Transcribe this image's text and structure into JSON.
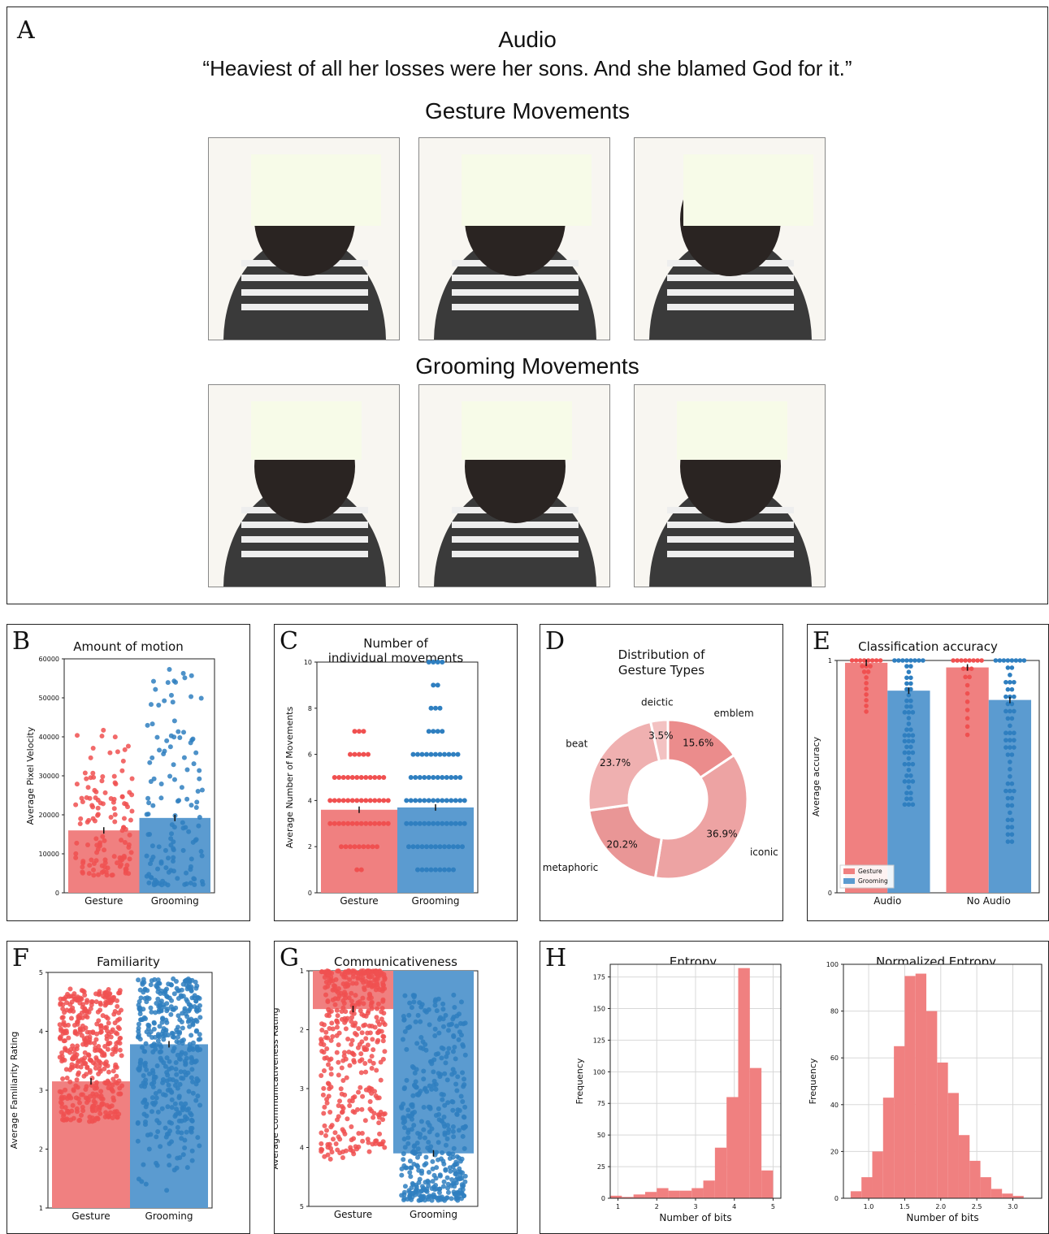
{
  "panelA": {
    "letter": "A",
    "audio_label": "Audio",
    "quote": "“Heaviest of all her losses were her sons. And she blamed God for it.”",
    "gesture_heading": "Gesture Movements",
    "grooming_heading": "Grooming Movements"
  },
  "colors": {
    "gesture": "#f08080",
    "gesture_dot": "#f05050",
    "grooming": "#5b9bd0",
    "grooming_dot": "#2f7fc0",
    "face_box": "#f7fbe8"
  },
  "chart_data": [
    {
      "id": "B",
      "letter": "B",
      "type": "bar",
      "title": "Amount of motion",
      "xlabel": "",
      "ylabel": "Average Pixel Velocity",
      "categories": [
        "Gesture",
        "Grooming"
      ],
      "values": [
        16000,
        19200
      ],
      "ylim": [
        0,
        60000
      ],
      "yticks": [
        "0",
        "10000",
        "20000",
        "30000",
        "40000",
        "50000",
        "60000"
      ],
      "points_range": [
        [
          4500,
          42000
        ],
        [
          2000,
          58000
        ]
      ],
      "points_n": 130
    },
    {
      "id": "C",
      "letter": "C",
      "type": "bar",
      "title": "Number of individual movements",
      "title_lines": [
        "Number of",
        "individual movements"
      ],
      "xlabel": "",
      "ylabel": "Average Number of Movements",
      "categories": [
        "Gesture",
        "Grooming"
      ],
      "values": [
        3.6,
        3.7
      ],
      "ylim": [
        0,
        10
      ],
      "yticks": [
        "0",
        "2",
        "4",
        "6",
        "8",
        "10"
      ],
      "points_levels": [
        [
          1,
          2,
          3,
          4,
          5,
          6,
          7
        ],
        [
          1,
          2,
          3,
          4,
          5,
          6,
          7,
          8,
          9,
          10
        ]
      ]
    },
    {
      "id": "D",
      "letter": "D",
      "type": "pie",
      "title": "Distribution of Gesture Types",
      "title_lines": [
        "Distribution of",
        "Gesture Types"
      ],
      "slices": [
        {
          "label": "emblem",
          "value": 15.6,
          "pct": "15.6%"
        },
        {
          "label": "iconic",
          "value": 36.9,
          "pct": "36.9%"
        },
        {
          "label": "metaphoric",
          "value": 20.2,
          "pct": "20.2%"
        },
        {
          "label": "beat",
          "value": 23.7,
          "pct": "23.7%"
        },
        {
          "label": "deictic",
          "value": 3.5,
          "pct": "3.5%"
        }
      ],
      "colors": [
        "#eb8c8c",
        "#eda3a3",
        "#e99696",
        "#efb0b0",
        "#f3c2c2"
      ]
    },
    {
      "id": "E",
      "letter": "E",
      "type": "bar",
      "title": "Classification accuracy",
      "xlabel": "",
      "ylabel": "Average accuracy",
      "categories": [
        "Audio",
        "No Audio"
      ],
      "series": [
        {
          "name": "Gesture",
          "values": [
            0.99,
            0.97
          ]
        },
        {
          "name": "Grooming",
          "values": [
            0.87,
            0.83
          ]
        }
      ],
      "ylim": [
        0,
        1
      ],
      "yticks": [
        "0",
        "1"
      ],
      "legend": "bottom-left",
      "points_min": [
        [
          0.78,
          0.68
        ],
        [
          0.38,
          0.22
        ]
      ]
    },
    {
      "id": "F",
      "letter": "F",
      "type": "bar",
      "title": "Familiarity",
      "xlabel": "",
      "ylabel": "Average Familiarity Rating",
      "categories": [
        "Gesture",
        "Grooming"
      ],
      "values": [
        3.15,
        3.78
      ],
      "ylim": [
        1,
        5
      ],
      "yticks": [
        "1",
        "2",
        "3",
        "4",
        "5"
      ],
      "points_range": [
        [
          1.25,
          4.72
        ],
        [
          1.25,
          4.9
        ]
      ],
      "points_n": 420
    },
    {
      "id": "G",
      "letter": "G",
      "type": "bar",
      "title": "Communicativeness",
      "xlabel": "",
      "ylabel": "Average Communicativeness Rating",
      "categories": [
        "Gesture",
        "Grooming"
      ],
      "values": [
        1.65,
        4.1
      ],
      "ylim": [
        1,
        5
      ],
      "inverted_y": true,
      "yticks": [
        "1",
        "2",
        "3",
        "4",
        "5"
      ],
      "points_range": [
        [
          1.0,
          4.2
        ],
        [
          1.4,
          4.9
        ]
      ],
      "points_n": 420
    },
    {
      "id": "H1",
      "letter": "H",
      "type": "bar",
      "title": "Entropy",
      "xlabel": "Number of bits",
      "ylabel": "Frequency",
      "bin_edges": [
        0.8,
        1.1,
        1.4,
        1.7,
        2.0,
        2.3,
        2.6,
        2.9,
        3.2,
        3.5,
        3.8,
        4.1,
        4.4,
        4.7,
        5.0
      ],
      "values": [
        2,
        1,
        3,
        5,
        8,
        6,
        6,
        8,
        14,
        40,
        80,
        182,
        103,
        22
      ],
      "xlim": [
        0.8,
        5.2
      ],
      "ylim": [
        0,
        185
      ],
      "xticks": [
        "1",
        "2",
        "3",
        "4",
        "5"
      ],
      "yticks": [
        "0",
        "25",
        "50",
        "75",
        "100",
        "125",
        "150",
        "175"
      ],
      "grid": true
    },
    {
      "id": "H2",
      "letter": "",
      "type": "bar",
      "title": "Normalized Entropy",
      "xlabel": "Number of bits",
      "ylabel": "Frequency",
      "bin_edges": [
        0.75,
        0.9,
        1.05,
        1.2,
        1.35,
        1.5,
        1.65,
        1.8,
        1.95,
        2.1,
        2.25,
        2.4,
        2.55,
        2.7,
        2.85,
        3.0,
        3.15,
        3.3
      ],
      "values": [
        3,
        9,
        20,
        43,
        65,
        95,
        96,
        80,
        58,
        45,
        27,
        16,
        9,
        4,
        2,
        1,
        0
      ],
      "xlim": [
        0.65,
        3.4
      ],
      "ylim": [
        0,
        100
      ],
      "xticks": [
        "1.0",
        "1.5",
        "2.0",
        "2.5",
        "3.0"
      ],
      "yticks": [
        "0",
        "20",
        "40",
        "60",
        "80",
        "100"
      ],
      "grid": true
    }
  ]
}
